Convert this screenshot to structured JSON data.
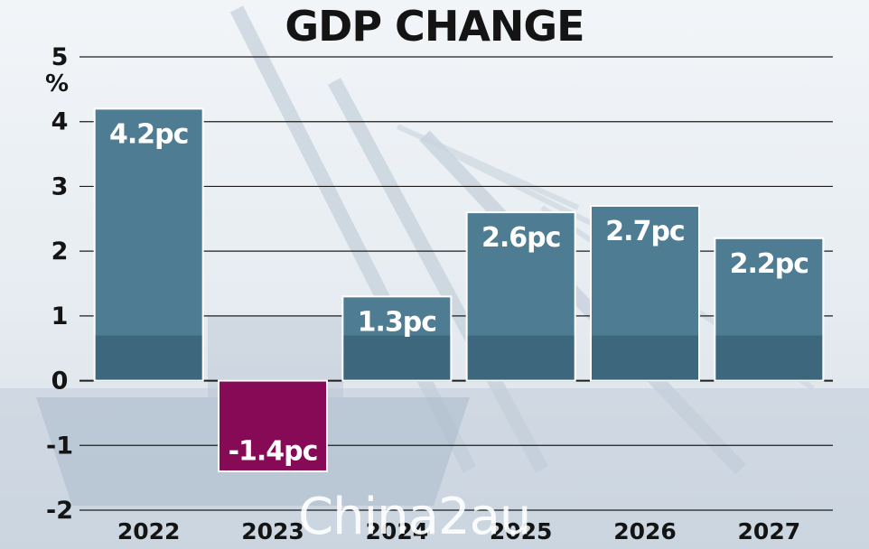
{
  "chart_data": {
    "type": "bar",
    "title": "GDP CHANGE",
    "ylabel": "%",
    "categories": [
      "2022",
      "2023",
      "2024",
      "2025",
      "2026",
      "2027"
    ],
    "values": [
      4.2,
      -1.4,
      1.3,
      2.6,
      2.7,
      2.2
    ],
    "data_labels": [
      "4.2pc",
      "-1.4pc",
      "1.3pc",
      "2.6pc",
      "2.7pc",
      "2.2pc"
    ],
    "yticks": [
      "5",
      "4",
      "3",
      "2",
      "1",
      "0",
      "-1",
      "-2"
    ],
    "ylim": [
      -2,
      5
    ],
    "grid": true,
    "colors": {
      "positive": "#4d7c93",
      "negative": "#860a55"
    }
  },
  "watermark": "China2au"
}
